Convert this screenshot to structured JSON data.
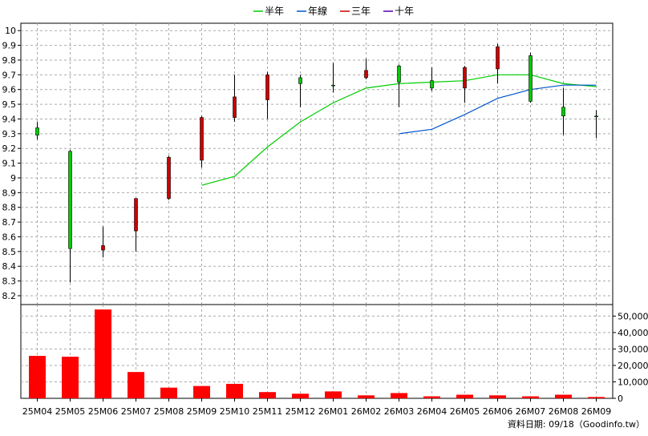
{
  "legend": [
    {
      "label": "半年",
      "color": "#00cc00"
    },
    {
      "label": "年線",
      "color": "#0055cc"
    },
    {
      "label": "三年",
      "color": "#cc0000"
    },
    {
      "label": "十年",
      "color": "#5500aa"
    }
  ],
  "footer": "資料日期: 09/18（Goodinfo.tw）",
  "chart_data": {
    "type": "candlestick",
    "categories": [
      "25M04",
      "25M05",
      "25M06",
      "25M07",
      "25M08",
      "25M09",
      "25M10",
      "25M11",
      "25M12",
      "26M01",
      "26M02",
      "26M03",
      "26M04",
      "26M05",
      "26M06",
      "26M07",
      "26M08",
      "26M09"
    ],
    "price_axis": {
      "ylim": [
        8.14,
        10.05
      ],
      "ticks": [
        8.2,
        8.3,
        8.4,
        8.5,
        8.6,
        8.7,
        8.8,
        8.9,
        9,
        9.1,
        9.2,
        9.3,
        9.4,
        9.5,
        9.6,
        9.7,
        9.8,
        9.9,
        10
      ],
      "tick_labels": [
        "8.2",
        "8.3",
        "8.4",
        "8.5",
        "8.6",
        "8.7",
        "8.8",
        "8.9",
        "9",
        "9.1",
        "9.2",
        "9.3",
        "9.4",
        "9.5",
        "9.6",
        "9.7",
        "9.8",
        "9.9",
        "10"
      ]
    },
    "volume_axis": {
      "ylim": [
        0,
        57000
      ],
      "ticks": [
        0,
        10000,
        20000,
        30000,
        40000,
        50000
      ],
      "tick_labels": [
        "0",
        "10,000",
        "20,000",
        "30,000",
        "40,000",
        "50,000"
      ]
    },
    "candles": [
      {
        "open": 9.29,
        "high": 9.38,
        "low": 9.26,
        "close": 9.34
      },
      {
        "open": 8.52,
        "high": 9.19,
        "low": 8.29,
        "close": 9.18
      },
      {
        "open": 8.54,
        "high": 8.67,
        "low": 8.46,
        "close": 8.51
      },
      {
        "open": 8.86,
        "high": 8.86,
        "low": 8.5,
        "close": 8.64
      },
      {
        "open": 9.14,
        "high": 9.15,
        "low": 8.85,
        "close": 8.86
      },
      {
        "open": 9.41,
        "high": 9.42,
        "low": 9.07,
        "close": 9.12
      },
      {
        "open": 9.55,
        "high": 9.7,
        "low": 9.38,
        "close": 9.41
      },
      {
        "open": 9.7,
        "high": 9.72,
        "low": 9.4,
        "close": 9.53
      },
      {
        "open": 9.64,
        "high": 9.7,
        "low": 9.48,
        "close": 9.68
      },
      {
        "open": 9.63,
        "high": 9.78,
        "low": 9.58,
        "close": 9.63
      },
      {
        "open": 9.73,
        "high": 9.81,
        "low": 9.67,
        "close": 9.68
      },
      {
        "open": 9.65,
        "high": 9.77,
        "low": 9.48,
        "close": 9.76
      },
      {
        "open": 9.61,
        "high": 9.75,
        "low": 9.59,
        "close": 9.66
      },
      {
        "open": 9.75,
        "high": 9.76,
        "low": 9.51,
        "close": 9.61
      },
      {
        "open": 9.89,
        "high": 9.91,
        "low": 9.64,
        "close": 9.74
      },
      {
        "open": 9.52,
        "high": 9.85,
        "low": 9.51,
        "close": 9.83
      },
      {
        "open": 9.42,
        "high": 9.61,
        "low": 9.29,
        "close": 9.48
      },
      {
        "open": 9.42,
        "high": 9.46,
        "low": 9.27,
        "close": 9.42
      }
    ],
    "series": [
      {
        "name": "半年",
        "color": "#00cc00",
        "values": [
          null,
          null,
          null,
          null,
          null,
          8.95,
          9.01,
          9.21,
          9.38,
          9.51,
          9.61,
          9.64,
          9.65,
          9.66,
          9.7,
          9.7,
          9.64,
          9.62
        ]
      },
      {
        "name": "年線",
        "color": "#0055cc",
        "values": [
          null,
          null,
          null,
          null,
          null,
          null,
          null,
          null,
          null,
          null,
          null,
          9.3,
          9.33,
          9.43,
          9.54,
          9.6,
          9.63,
          9.63
        ]
      },
      {
        "name": "三年",
        "color": "#cc0000",
        "values": [
          null,
          null,
          null,
          null,
          null,
          null,
          null,
          null,
          null,
          null,
          null,
          null,
          null,
          null,
          null,
          null,
          null,
          null
        ]
      },
      {
        "name": "十年",
        "color": "#5500aa",
        "values": [
          null,
          null,
          null,
          null,
          null,
          null,
          null,
          null,
          null,
          null,
          null,
          null,
          null,
          null,
          null,
          null,
          null,
          null
        ]
      }
    ],
    "volume": [
      25800,
      25300,
      54000,
      16000,
      6500,
      7500,
      8800,
      3800,
      2800,
      4200,
      1800,
      3200,
      1200,
      2200,
      1800,
      1200,
      2200,
      800
    ],
    "grid": true,
    "legend_position": "top-center"
  }
}
